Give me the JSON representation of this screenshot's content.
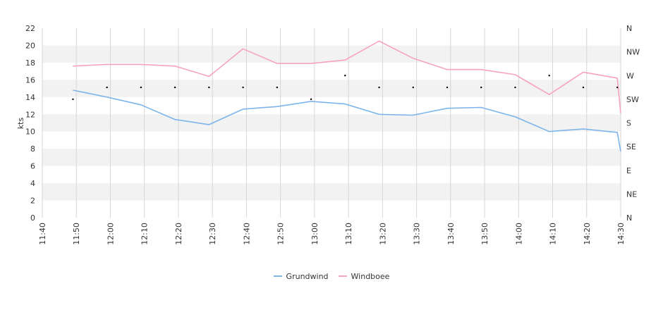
{
  "chart_data": {
    "type": "line",
    "ylabel": "kts",
    "ylim": [
      0,
      22
    ],
    "yticks": [
      0,
      2,
      4,
      6,
      8,
      10,
      12,
      14,
      16,
      18,
      20,
      22
    ],
    "xticks": [
      "11:40",
      "11:50",
      "12:00",
      "12:10",
      "12:20",
      "12:30",
      "12:40",
      "12:50",
      "13:00",
      "13:10",
      "13:20",
      "13:30",
      "13:40",
      "13:50",
      "14:00",
      "14:10",
      "14:20",
      "14:30"
    ],
    "direction_ticks": [
      "N",
      "NE",
      "E",
      "SE",
      "S",
      "SW",
      "W",
      "NW",
      "N"
    ],
    "grid": true,
    "legend_position": "bottom-center",
    "x": [
      "11:49",
      "11:59",
      "12:09",
      "12:19",
      "12:29",
      "12:39",
      "12:49",
      "12:59",
      "13:09",
      "13:19",
      "13:29",
      "13:39",
      "13:49",
      "13:59",
      "14:09",
      "14:19",
      "14:29",
      "14:30"
    ],
    "series": [
      {
        "name": "Grundwind",
        "color": "#7cb5ec",
        "values": [
          14.8,
          14.0,
          13.1,
          11.4,
          10.8,
          12.6,
          12.9,
          13.5,
          13.2,
          12.0,
          11.9,
          12.7,
          12.8,
          11.7,
          10.0,
          10.3,
          9.9,
          7.7
        ]
      },
      {
        "name": "Windboee",
        "color": "#f7a1c4",
        "values": [
          17.6,
          17.8,
          17.8,
          17.6,
          16.4,
          19.6,
          17.9,
          17.9,
          18.3,
          20.5,
          18.5,
          17.2,
          17.2,
          16.6,
          14.3,
          16.9,
          16.2,
          12.1
        ]
      }
    ],
    "direction_series": {
      "x": [
        "11:49",
        "11:59",
        "12:09",
        "12:19",
        "12:29",
        "12:39",
        "12:49",
        "12:59",
        "13:09",
        "13:19",
        "13:29",
        "13:39",
        "13:49",
        "13:59",
        "14:09",
        "14:19",
        "14:29"
      ],
      "values": [
        5.0,
        5.5,
        5.5,
        5.5,
        5.5,
        5.5,
        5.5,
        5.0,
        6.0,
        5.5,
        5.5,
        5.5,
        5.5,
        5.5,
        6.0,
        5.5,
        5.5
      ],
      "color": "#000000"
    }
  }
}
